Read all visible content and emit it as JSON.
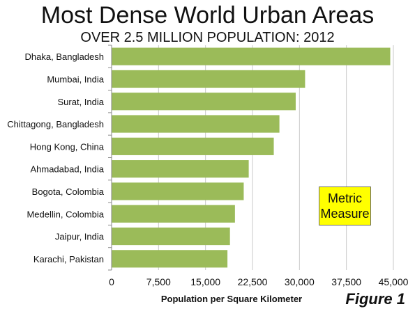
{
  "chart_data": {
    "type": "bar",
    "orientation": "horizontal",
    "title": "Most Dense World Urban Areas",
    "subtitle": "OVER 2.5 MILLION POPULATION: 2012",
    "categories": [
      "Dhaka, Bangladesh",
      "Mumbai, India",
      "Surat, India",
      "Chittagong, Bangladesh",
      "Hong Kong, China",
      "Ahmadabad, India",
      "Bogota, Colombia",
      "Medellin, Colombia",
      "Jaipur, India",
      "Karachi, Pakistan"
    ],
    "values": [
      44500,
      30900,
      29400,
      26800,
      25900,
      21900,
      21100,
      19700,
      18900,
      18500
    ],
    "xlabel": "Population per Square Kilometer",
    "ylabel": "",
    "xlim": [
      0,
      45000
    ],
    "xticks": [
      0,
      7500,
      15000,
      22500,
      30000,
      37500,
      45000
    ],
    "xtick_labels": [
      "0",
      "7,500",
      "15,000",
      "22,500",
      "30,000",
      "37,500",
      "45,000"
    ],
    "grid": "vertical",
    "bar_color": "#9bbb59",
    "grid_color": "#c8c8c8",
    "annotation": {
      "lines": [
        "Metric",
        "Measure"
      ],
      "background": "#ffff00"
    },
    "figure_label": "Figure 1"
  }
}
